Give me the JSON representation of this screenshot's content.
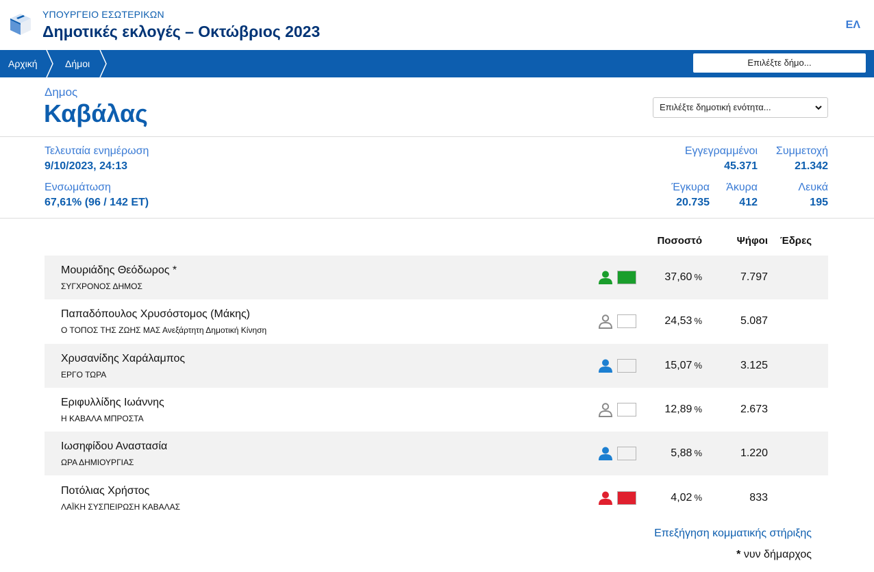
{
  "header": {
    "ministry": "ΥΠΟΥΡΓΕΙΟ ΕΣΩΤΕΡΙΚΩΝ",
    "title": "Δημοτικές εκλογές – Οκτώβριος 2023",
    "language": "ΕΛ"
  },
  "nav": {
    "breadcrumbs": [
      "Αρχική",
      "Δήμοι"
    ],
    "municipality_button": "Επιλέξτε δήμο..."
  },
  "municipality": {
    "label": "Δημος",
    "name": "Καβάλας",
    "unit_select_placeholder": "Επιλέξτε δημοτική ενότητα..."
  },
  "stats": {
    "last_update_label": "Τελευταία ενημέρωση",
    "last_update_value": "9/10/2023, 24:13",
    "incorporation_label": "Ενσωμάτωση",
    "incorporation_value": "67,61% (96 / 142 ΕΤ)",
    "registered_label": "Εγγεγραμμένοι",
    "registered_value": "45.371",
    "turnout_label": "Συμμετοχή",
    "turnout_value": "21.342",
    "valid_label": "Έγκυρα",
    "valid_value": "20.735",
    "invalid_label": "Άκυρα",
    "invalid_value": "412",
    "blank_label": "Λευκά",
    "blank_value": "195"
  },
  "results": {
    "columns": {
      "percent": "Ποσοστό",
      "votes": "Ψήφοι",
      "seats": "Έδρες"
    },
    "percent_unit": "%",
    "rows": [
      {
        "candidate": "Μουριάδης Θεόδωρος *",
        "party": "ΣΥΓΧΡΟΝΟΣ ΔΗΜΟΣ",
        "percent": "37,60",
        "votes": "7.797",
        "seats": "",
        "icon_color": "#1a9e2c",
        "swatch_color": "#1a9e2c",
        "icon_style": "filled"
      },
      {
        "candidate": "Παπαδόπουλος Χρυσόστομος (Μάκης)",
        "party": "Ο ΤΟΠΟΣ ΤΗΣ ΖΩΗΣ ΜΑΣ Ανεξάρτητη Δημοτική Κίνηση",
        "percent": "24,53",
        "votes": "5.087",
        "seats": "",
        "icon_color": "#8a8a8a",
        "swatch_color": "#ffffff",
        "icon_style": "outline"
      },
      {
        "candidate": "Χρυσανίδης Χαράλαμπος",
        "party": "ΕΡΓΟ ΤΩΡΑ",
        "percent": "15,07",
        "votes": "3.125",
        "seats": "",
        "icon_color": "#1c7fd1",
        "swatch_color": "#f2f2f2",
        "icon_style": "filled"
      },
      {
        "candidate": "Εριφυλλίδης Ιωάννης",
        "party": "Η ΚΑΒΑΛΑ ΜΠΡΟΣΤΑ",
        "percent": "12,89",
        "votes": "2.673",
        "seats": "",
        "icon_color": "#8a8a8a",
        "swatch_color": "#ffffff",
        "icon_style": "outline"
      },
      {
        "candidate": "Ιωσηφίδου Αναστασία",
        "party": "ΩΡΑ ΔΗΜΙΟΥΡΓΙΑΣ",
        "percent": "5,88",
        "votes": "1.220",
        "seats": "",
        "icon_color": "#1c7fd1",
        "swatch_color": "#f2f2f2",
        "icon_style": "filled"
      },
      {
        "candidate": "Ποτόλιας Χρήστος",
        "party": "ΛΑΪΚΗ ΣΥΣΠΕΙΡΩΣΗ ΚΑΒΑΛΑΣ",
        "percent": "4,02",
        "votes": "833",
        "seats": "",
        "icon_color": "#e0202e",
        "swatch_color": "#e0202e",
        "icon_style": "filled"
      }
    ]
  },
  "footer": {
    "explain_link": "Επεξήγηση κομματικής στήριξης",
    "footnote_star": "*",
    "footnote_text": " νυν δήμαρχος"
  }
}
